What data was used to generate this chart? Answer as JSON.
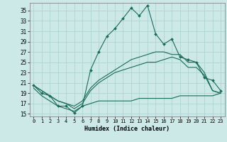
{
  "xlabel": "Humidex (Indice chaleur)",
  "ylabel": "",
  "xlim": [
    -0.5,
    23.5
  ],
  "ylim": [
    14.5,
    36.5
  ],
  "xticks": [
    0,
    1,
    2,
    3,
    4,
    5,
    6,
    7,
    8,
    9,
    10,
    11,
    12,
    13,
    14,
    15,
    16,
    17,
    18,
    19,
    20,
    21,
    22,
    23
  ],
  "yticks": [
    15,
    17,
    19,
    21,
    23,
    25,
    27,
    29,
    31,
    33,
    35
  ],
  "background_color": "#cce9e8",
  "grid_color": "#aed4d3",
  "line_color": "#1a6b5a",
  "line1_y": [
    20.5,
    19.0,
    18.5,
    16.5,
    16.5,
    15.2,
    16.5,
    23.5,
    27.0,
    30.0,
    31.5,
    33.5,
    35.5,
    34.0,
    36.0,
    30.5,
    28.5,
    29.5,
    26.0,
    25.5,
    25.0,
    22.0,
    21.5,
    19.5
  ],
  "line2_y": [
    20.5,
    19.5,
    18.5,
    17.5,
    17.0,
    16.5,
    17.5,
    20.0,
    21.5,
    22.5,
    23.5,
    24.5,
    25.5,
    26.0,
    26.5,
    27.0,
    27.0,
    26.5,
    26.5,
    25.0,
    25.0,
    23.0,
    19.5,
    19.0
  ],
  "line3_y": [
    20.5,
    19.5,
    18.5,
    17.5,
    17.0,
    16.0,
    17.0,
    19.5,
    21.0,
    22.0,
    23.0,
    23.5,
    24.0,
    24.5,
    25.0,
    25.0,
    25.5,
    26.0,
    25.5,
    24.0,
    24.0,
    22.5,
    19.5,
    19.0
  ],
  "line4_y": [
    20.0,
    18.5,
    17.5,
    16.5,
    16.0,
    15.5,
    16.5,
    17.0,
    17.5,
    17.5,
    17.5,
    17.5,
    17.5,
    18.0,
    18.0,
    18.0,
    18.0,
    18.0,
    18.5,
    18.5,
    18.5,
    18.5,
    18.5,
    19.0
  ],
  "tick_fontsize": 5.5,
  "xlabel_fontsize": 6.0,
  "linewidth": 0.8,
  "marker_size": 2.0
}
